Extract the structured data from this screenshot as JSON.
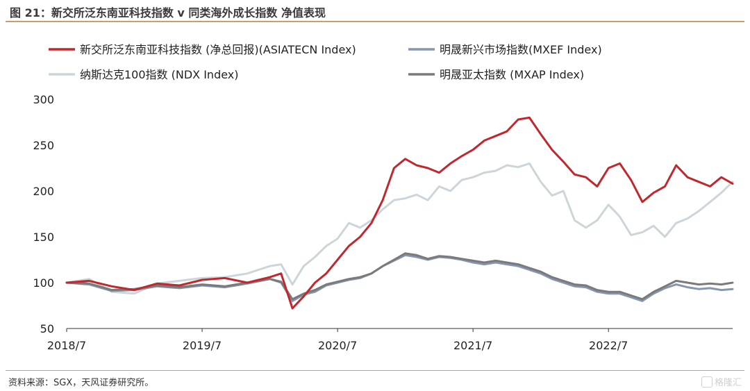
{
  "figure": {
    "title": "图 21：新交所泛东南亚科技指数 v 同类海外成长指数 净值表现",
    "source": "资料来源：SGX，天风证券研究所。",
    "watermark": "格隆汇"
  },
  "chart_data": {
    "type": "line",
    "title": "",
    "xlabel": "",
    "ylabel": "",
    "ylim": [
      50,
      300
    ],
    "yticks": [
      50,
      100,
      150,
      200,
      250,
      300
    ],
    "xticks": [
      "2018/7",
      "2019/7",
      "2020/7",
      "2021/7",
      "2022/7"
    ],
    "x_range": [
      "2018/7",
      "2023/6"
    ],
    "legend": "top",
    "grid": false,
    "series": [
      {
        "name": "新交所泛东南亚科技指数 (净总回报)(ASIATECN Index)",
        "color": "#c0282d",
        "width": 3,
        "x": [
          "2018/7",
          "2018/9",
          "2018/11",
          "2019/1",
          "2019/3",
          "2019/5",
          "2019/7",
          "2019/9",
          "2019/11",
          "2020/1",
          "2020/2",
          "2020/3",
          "2020/4",
          "2020/5",
          "2020/6",
          "2020/7",
          "2020/8",
          "2020/9",
          "2020/10",
          "2020/11",
          "2020/12",
          "2021/1",
          "2021/2",
          "2021/3",
          "2021/4",
          "2021/5",
          "2021/6",
          "2021/7",
          "2021/8",
          "2021/9",
          "2021/10",
          "2021/11",
          "2021/12",
          "2022/1",
          "2022/2",
          "2022/3",
          "2022/4",
          "2022/5",
          "2022/6",
          "2022/7",
          "2022/8",
          "2022/9",
          "2022/10",
          "2022/11",
          "2022/12",
          "2023/1",
          "2023/2",
          "2023/3",
          "2023/4",
          "2023/5",
          "2023/6"
        ],
        "values": [
          100,
          102,
          96,
          92,
          99,
          97,
          103,
          105,
          100,
          106,
          110,
          72,
          85,
          100,
          110,
          125,
          140,
          150,
          165,
          190,
          225,
          235,
          228,
          225,
          220,
          230,
          238,
          245,
          255,
          260,
          265,
          278,
          280,
          262,
          245,
          232,
          218,
          215,
          205,
          225,
          230,
          212,
          188,
          198,
          205,
          228,
          215,
          210,
          205,
          215,
          208
        ]
      },
      {
        "name": "明晟新兴市场指数(MXEF Index)",
        "color": "#8496b0",
        "width": 3,
        "x": [
          "2018/7",
          "2018/9",
          "2018/11",
          "2019/1",
          "2019/3",
          "2019/5",
          "2019/7",
          "2019/9",
          "2019/11",
          "2020/1",
          "2020/2",
          "2020/3",
          "2020/4",
          "2020/5",
          "2020/6",
          "2020/7",
          "2020/8",
          "2020/9",
          "2020/10",
          "2020/11",
          "2020/12",
          "2021/1",
          "2021/2",
          "2021/3",
          "2021/4",
          "2021/5",
          "2021/6",
          "2021/7",
          "2021/8",
          "2021/9",
          "2021/10",
          "2021/11",
          "2021/12",
          "2022/1",
          "2022/2",
          "2022/3",
          "2022/4",
          "2022/5",
          "2022/6",
          "2022/7",
          "2022/8",
          "2022/9",
          "2022/10",
          "2022/11",
          "2022/12",
          "2023/1",
          "2023/2",
          "2023/3",
          "2023/4",
          "2023/5",
          "2023/6"
        ],
        "values": [
          100,
          98,
          91,
          92,
          96,
          94,
          97,
          95,
          99,
          104,
          100,
          80,
          87,
          90,
          97,
          100,
          103,
          105,
          110,
          118,
          124,
          130,
          128,
          125,
          128,
          127,
          125,
          122,
          120,
          122,
          120,
          118,
          114,
          110,
          104,
          100,
          96,
          95,
          90,
          88,
          88,
          84,
          80,
          88,
          94,
          98,
          95,
          93,
          94,
          92,
          93
        ]
      },
      {
        "name": "纳斯达克100指数 (NDX Index)",
        "color": "#ccd5da",
        "width": 3,
        "x": [
          "2018/7",
          "2018/9",
          "2018/11",
          "2019/1",
          "2019/3",
          "2019/5",
          "2019/7",
          "2019/9",
          "2019/11",
          "2020/1",
          "2020/2",
          "2020/3",
          "2020/4",
          "2020/5",
          "2020/6",
          "2020/7",
          "2020/8",
          "2020/9",
          "2020/10",
          "2020/11",
          "2020/12",
          "2021/1",
          "2021/2",
          "2021/3",
          "2021/4",
          "2021/5",
          "2021/6",
          "2021/7",
          "2021/8",
          "2021/9",
          "2021/10",
          "2021/11",
          "2021/12",
          "2022/1",
          "2022/2",
          "2022/3",
          "2022/4",
          "2022/5",
          "2022/6",
          "2022/7",
          "2022/8",
          "2022/9",
          "2022/10",
          "2022/11",
          "2022/12",
          "2023/1",
          "2023/2",
          "2023/3",
          "2023/4",
          "2023/5",
          "2023/6"
        ],
        "values": [
          100,
          104,
          90,
          88,
          99,
          102,
          105,
          106,
          110,
          118,
          120,
          98,
          118,
          128,
          140,
          148,
          165,
          160,
          168,
          180,
          190,
          192,
          196,
          190,
          205,
          200,
          212,
          215,
          220,
          222,
          228,
          226,
          230,
          210,
          195,
          200,
          168,
          160,
          168,
          185,
          172,
          152,
          155,
          162,
          150,
          165,
          170,
          178,
          188,
          198,
          210
        ]
      },
      {
        "name": "明晟亚太指数 (MXAP Index)",
        "color": "#7a7a7a",
        "width": 3,
        "x": [
          "2018/7",
          "2018/9",
          "2018/11",
          "2019/1",
          "2019/3",
          "2019/5",
          "2019/7",
          "2019/9",
          "2019/11",
          "2020/1",
          "2020/2",
          "2020/3",
          "2020/4",
          "2020/5",
          "2020/6",
          "2020/7",
          "2020/8",
          "2020/9",
          "2020/10",
          "2020/11",
          "2020/12",
          "2021/1",
          "2021/2",
          "2021/3",
          "2021/4",
          "2021/5",
          "2021/6",
          "2021/7",
          "2021/8",
          "2021/9",
          "2021/10",
          "2021/11",
          "2021/12",
          "2022/1",
          "2022/2",
          "2022/3",
          "2022/4",
          "2022/5",
          "2022/6",
          "2022/7",
          "2022/8",
          "2022/9",
          "2022/10",
          "2022/11",
          "2022/12",
          "2023/1",
          "2023/2",
          "2023/3",
          "2023/4",
          "2023/5",
          "2023/6"
        ],
        "values": [
          100,
          99,
          92,
          93,
          97,
          95,
          98,
          96,
          100,
          104,
          101,
          82,
          88,
          92,
          98,
          101,
          104,
          106,
          110,
          118,
          125,
          132,
          130,
          126,
          129,
          128,
          126,
          124,
          122,
          124,
          122,
          120,
          116,
          112,
          106,
          102,
          98,
          97,
          92,
          90,
          90,
          86,
          82,
          90,
          96,
          102,
          100,
          98,
          99,
          98,
          100
        ]
      }
    ]
  }
}
